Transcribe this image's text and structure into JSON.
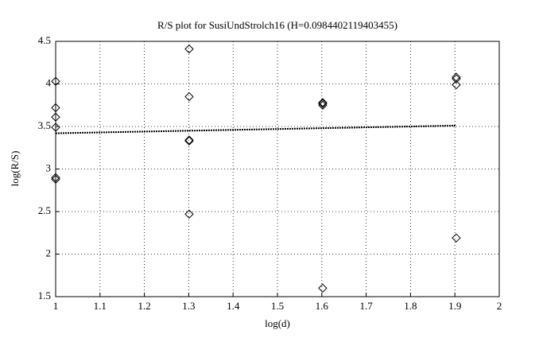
{
  "chart_data": {
    "type": "scatter",
    "title": "R/S plot for SusiUndStrolch16 (H=0.0984402119403455)",
    "xlabel": "log(d)",
    "ylabel": "log(R/S)",
    "xlim": [
      1,
      2
    ],
    "ylim": [
      1.5,
      4.5
    ],
    "xticks": [
      1,
      1.1,
      1.2,
      1.3,
      1.4,
      1.5,
      1.6,
      1.7,
      1.8,
      1.9,
      2
    ],
    "yticks": [
      1.5,
      2,
      2.5,
      3,
      3.5,
      4,
      4.5
    ],
    "grid": true,
    "series": [
      {
        "type": "scatter",
        "marker": "diamond",
        "color": "#000000",
        "x": [
          1,
          1,
          1,
          1,
          1,
          1,
          1.301,
          1.301,
          1.301,
          1.301,
          1.301,
          1.602,
          1.602,
          1.602,
          1.602,
          1.903,
          1.903,
          1.903,
          1.903
        ],
        "values": [
          4.03,
          3.72,
          3.61,
          3.49,
          2.9,
          2.88,
          4.41,
          3.85,
          3.34,
          3.33,
          2.47,
          3.78,
          3.77,
          3.75,
          1.6,
          4.08,
          4.06,
          3.99,
          2.19
        ]
      },
      {
        "type": "line",
        "style": "dotted",
        "color": "#000000",
        "x": [
          1,
          1.903
        ],
        "values": [
          3.42,
          3.51
        ]
      }
    ]
  }
}
